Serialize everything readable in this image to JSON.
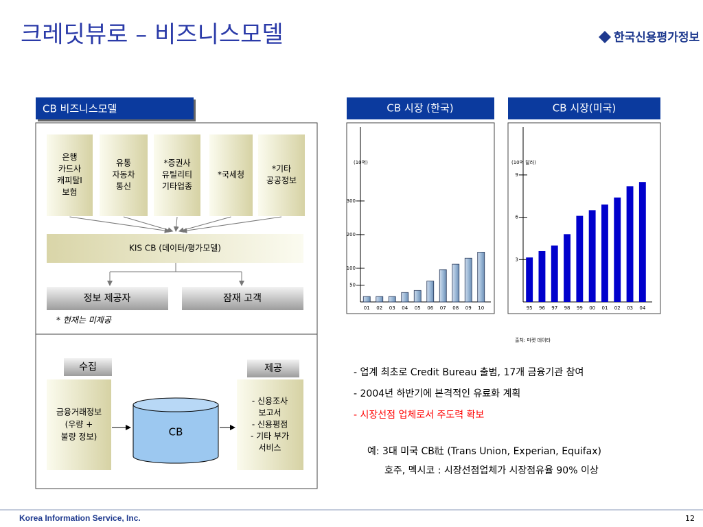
{
  "header": {
    "title": "크레딧뷰로 – 비즈니스모델",
    "logo": "한국신용평가정보"
  },
  "diagram": {
    "title": "CB 비즈니스모델",
    "sources": [
      [
        "은행",
        "카드사",
        "캐피탈I",
        "보험"
      ],
      [
        "유통",
        "자동차",
        "통신"
      ],
      [
        "*증권사",
        "유틸리티",
        "기타업종"
      ],
      [
        "*국세청"
      ],
      [
        "*기타",
        "공공정보"
      ]
    ],
    "hub": "KIS CB (데이터/평가모델)",
    "outputs": [
      "정보 제공자",
      "잠재 고객"
    ],
    "note": "* 현재는 미제공",
    "collect": "수집",
    "provide": "제공",
    "input": [
      "금융거래정보",
      "(우량 +",
      "불량 정보)"
    ],
    "core": "CB",
    "services": [
      "- 신용조사",
      "보고서",
      "- 신용평점",
      "- 기타 부가",
      "서비스"
    ]
  },
  "chart_data": [
    {
      "type": "bar",
      "title": "CB 시장 (한국)",
      "unit_label": "(10억)",
      "categories": [
        "01",
        "02",
        "03",
        "04",
        "05",
        "06",
        "07",
        "08",
        "09",
        "10"
      ],
      "values": [
        16,
        16,
        16,
        28,
        34,
        62,
        96,
        112,
        130,
        148
      ],
      "color": "#9dbad8",
      "ylim": [
        0,
        520
      ],
      "yticks": [
        50,
        100,
        200,
        300
      ]
    },
    {
      "type": "bar",
      "title": "CB 시장(미국)",
      "unit_label": "(10억 달러)",
      "categories": [
        "95",
        "96",
        "97",
        "98",
        "99",
        "00",
        "01",
        "02",
        "03",
        "04"
      ],
      "values": [
        3.15,
        3.6,
        4.0,
        4.8,
        6.1,
        6.5,
        6.9,
        7.4,
        8.2,
        8.5
      ],
      "color": "#0000cc",
      "ylim": [
        0,
        12.4
      ],
      "yticks": [
        3,
        6,
        9
      ]
    }
  ],
  "source": "출처: 마켓 데이타",
  "bullets": [
    {
      "text": "-  업계 최초로 Credit Bureau 출범, 17개 금융기관 참여",
      "color": "#000000"
    },
    {
      "text": "-  2004년 하반기에 본격적인 유료화 계획",
      "color": "#000000"
    },
    {
      "text": "-  시장선점 업체로서 주도력 확보",
      "color": "#ff0000"
    }
  ],
  "examples": [
    "예: 3대 미국 CB社 (Trans Union, Experian, Equifax)",
    "호주, 멕시코 : 시장선점업체가 시장점유율 90% 이상"
  ],
  "footer": {
    "company": "Korea Information Service, Inc.",
    "page": "12"
  }
}
